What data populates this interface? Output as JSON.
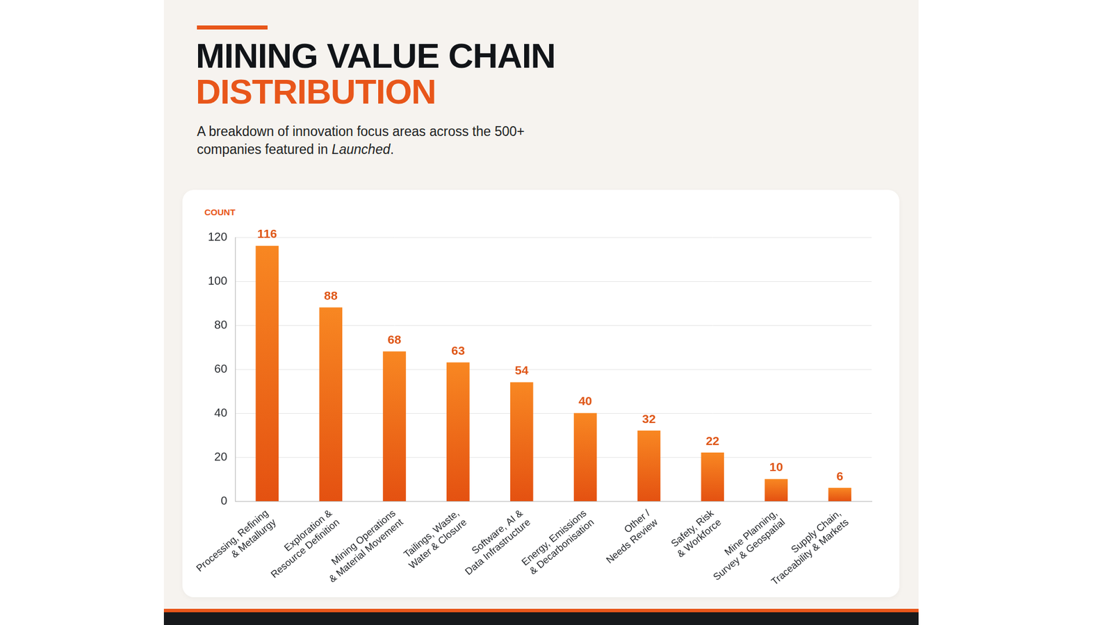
{
  "title": [
    "MINING VALUE CHAIN",
    "DISTRIBUTION"
  ],
  "subtitle": "A breakdown of innovation focus areas across the 500+ companies featured in Launched.",
  "chart_data": {
    "type": "bar",
    "ylabel": "COUNT",
    "categories": [
      "Processing, Refining & Metallurgy",
      "Exploration & Resource Definition",
      "Mining Operations & Material Movement",
      "Tailings, Waste, Water & Closure",
      "Software, AI & Data Infrastructure",
      "Energy, Emissions & Decarbonisation",
      "Other / Needs Review",
      "Safety, Risk & Workforce",
      "Mine Planning, Survey & Geospatial",
      "Supply Chain, Traceability & Markets"
    ],
    "values": [
      116,
      88,
      68,
      63,
      54,
      40,
      32,
      22,
      10,
      6
    ],
    "color": "#ef621a",
    "ylim": [
      0,
      120
    ],
    "yticks": [
      0,
      20,
      40,
      60,
      80,
      100,
      120
    ],
    "grid": true,
    "data_labels": true
  }
}
